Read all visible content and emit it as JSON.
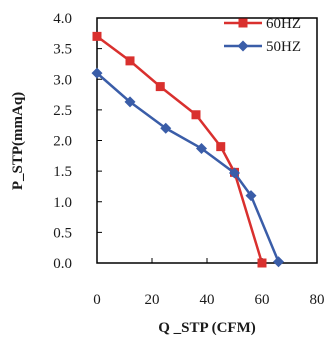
{
  "chart_data": {
    "type": "line",
    "xlabel": "Q _STP (CFM)",
    "ylabel": "P_STP(mmAq)",
    "xlim": [
      0,
      80
    ],
    "ylim": [
      0,
      4.0
    ],
    "x_ticks": [
      "0",
      "20",
      "40",
      "60",
      "80"
    ],
    "y_ticks": [
      "0.0",
      "0.5",
      "1.0",
      "1.5",
      "2.0",
      "2.5",
      "3.0",
      "3.5",
      "4.0"
    ],
    "grid": false,
    "legend_position": "top-right",
    "series": [
      {
        "name": "60HZ",
        "color": "#d9302e",
        "marker": "square",
        "points": [
          [
            0,
            3.7
          ],
          [
            12,
            3.3
          ],
          [
            23,
            2.88
          ],
          [
            36,
            2.42
          ],
          [
            45,
            1.9
          ],
          [
            50,
            1.48
          ],
          [
            60,
            0.0
          ]
        ]
      },
      {
        "name": "50HZ",
        "color": "#3a5da8",
        "marker": "diamond",
        "points": [
          [
            0,
            3.1
          ],
          [
            12,
            2.63
          ],
          [
            25,
            2.2
          ],
          [
            38,
            1.87
          ],
          [
            50,
            1.47
          ],
          [
            56,
            1.1
          ],
          [
            66,
            0.02
          ]
        ]
      }
    ]
  }
}
